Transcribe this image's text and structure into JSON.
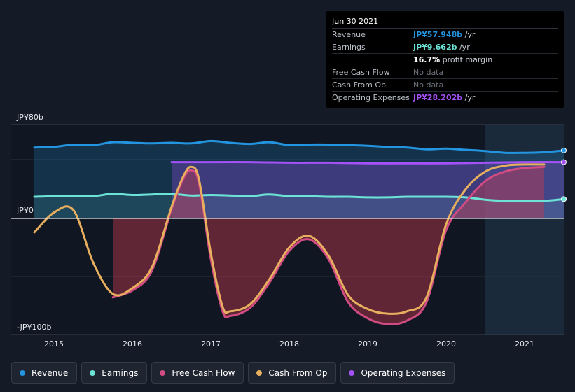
{
  "tooltip": {
    "date": "Jun 30 2021",
    "rows": [
      {
        "label": "Revenue",
        "value": "JP¥57.948b",
        "unit": " /yr",
        "color": "#2394df"
      },
      {
        "label": "Earnings",
        "value": "JP¥9.662b",
        "unit": " /yr",
        "color": "#6ce3d6"
      },
      {
        "label": "",
        "value": "16.7%",
        "unit": " profit margin",
        "color": "#ffffff"
      },
      {
        "label": "Free Cash Flow",
        "value": "No data",
        "unit": "",
        "color": ""
      },
      {
        "label": "Cash From Op",
        "value": "No data",
        "unit": "",
        "color": ""
      },
      {
        "label": "Operating Expenses",
        "value": "JP¥28.202b",
        "unit": " /yr",
        "color": "#a451f7"
      }
    ]
  },
  "legend": [
    {
      "label": "Revenue",
      "color": "#2394df"
    },
    {
      "label": "Earnings",
      "color": "#6ce3d6"
    },
    {
      "label": "Free Cash Flow",
      "color": "#d04c82"
    },
    {
      "label": "Cash From Op",
      "color": "#e8b05e"
    },
    {
      "label": "Operating Expenses",
      "color": "#a451f7"
    }
  ],
  "chart_data": {
    "type": "area",
    "y_tick_labels": [
      "JP¥80b",
      "JP¥0",
      "-JP¥100b"
    ],
    "x_tick_labels": [
      "2015",
      "2016",
      "2017",
      "2018",
      "2019",
      "2020",
      "2021"
    ],
    "ylim": [
      -100,
      80
    ],
    "xlim": [
      2014.75,
      2021.5
    ],
    "grid": false,
    "legend_position": "bottom",
    "highlight_region": [
      2020.5,
      2021.5
    ],
    "series": [
      {
        "name": "Revenue",
        "color": "#2394df",
        "x": [
          2014.75,
          2015.0,
          2015.25,
          2015.5,
          2015.75,
          2016.0,
          2016.25,
          2016.5,
          2016.75,
          2017.0,
          2017.25,
          2017.5,
          2017.75,
          2018.0,
          2018.25,
          2018.5,
          2018.75,
          2019.0,
          2019.25,
          2019.5,
          2019.75,
          2020.0,
          2020.25,
          2020.5,
          2020.75,
          2021.0,
          2021.25,
          2021.5
        ],
        "y": [
          60.5,
          61,
          63,
          62.5,
          65,
          64.5,
          64,
          64.5,
          64,
          66,
          64.5,
          63.5,
          65,
          62.5,
          63,
          63,
          62.5,
          62,
          61,
          60.5,
          59,
          59.5,
          58.5,
          57.5,
          56,
          56,
          56.5,
          58
        ]
      },
      {
        "name": "Earnings",
        "color": "#6ce3d6",
        "x": [
          2014.75,
          2015.0,
          2015.25,
          2015.5,
          2015.75,
          2016.0,
          2016.25,
          2016.5,
          2016.75,
          2017.0,
          2017.25,
          2017.5,
          2017.75,
          2018.0,
          2018.25,
          2018.5,
          2018.75,
          2019.0,
          2019.25,
          2019.5,
          2019.75,
          2020.0,
          2020.25,
          2020.5,
          2020.75,
          2021.0,
          2021.25,
          2021.5
        ],
        "y": [
          18.5,
          19,
          19,
          19,
          21,
          20,
          20.5,
          21,
          19.5,
          20,
          19.5,
          19,
          20.5,
          19,
          19,
          18.5,
          18.5,
          18,
          18,
          18.5,
          18.5,
          18.5,
          18,
          16,
          15,
          15,
          15,
          16.5
        ]
      },
      {
        "name": "Operating Expenses",
        "color": "#a451f7",
        "x": [
          2016.5,
          2016.75,
          2017.0,
          2017.5,
          2018.0,
          2018.5,
          2019.0,
          2019.5,
          2020.0,
          2020.5,
          2021.0,
          2021.5
        ],
        "y": [
          48,
          48,
          48,
          48,
          47.5,
          47.5,
          47,
          47,
          47,
          47.5,
          48,
          48
        ]
      },
      {
        "name": "Free Cash Flow",
        "color": "#d04c82",
        "x": [
          2015.75,
          2016.0,
          2016.25,
          2016.5,
          2016.65,
          2016.75,
          2016.85,
          2017.0,
          2017.15,
          2017.25,
          2017.5,
          2017.75,
          2018.0,
          2018.25,
          2018.5,
          2018.75,
          2019.0,
          2019.25,
          2019.5,
          2019.75,
          2020.0,
          2020.25,
          2020.5,
          2020.75,
          2021.0,
          2021.25
        ],
        "y": [
          -68,
          -62,
          -45,
          8,
          34,
          41,
          30,
          -35,
          -80,
          -84,
          -77,
          -55,
          -28,
          -18,
          -35,
          -72,
          -86,
          -91,
          -88,
          -72,
          -10,
          14,
          32,
          40,
          43,
          44
        ]
      },
      {
        "name": "Cash From Op",
        "color": "#e8b05e",
        "x": [
          2014.75,
          2015.0,
          2015.25,
          2015.5,
          2015.75,
          2016.0,
          2016.25,
          2016.5,
          2016.65,
          2016.75,
          2016.85,
          2017.0,
          2017.15,
          2017.25,
          2017.5,
          2017.75,
          2018.0,
          2018.25,
          2018.5,
          2018.75,
          2019.0,
          2019.25,
          2019.5,
          2019.75,
          2020.0,
          2020.25,
          2020.5,
          2020.75,
          2021.0,
          2021.25
        ],
        "y": [
          -12,
          5,
          7,
          -38,
          -65,
          -60,
          -42,
          10,
          36,
          44,
          33,
          -30,
          -76,
          -80,
          -74,
          -52,
          -25,
          -15,
          -32,
          -66,
          -78,
          -82,
          -80,
          -68,
          -5,
          25,
          40,
          45,
          46,
          46
        ]
      }
    ]
  }
}
